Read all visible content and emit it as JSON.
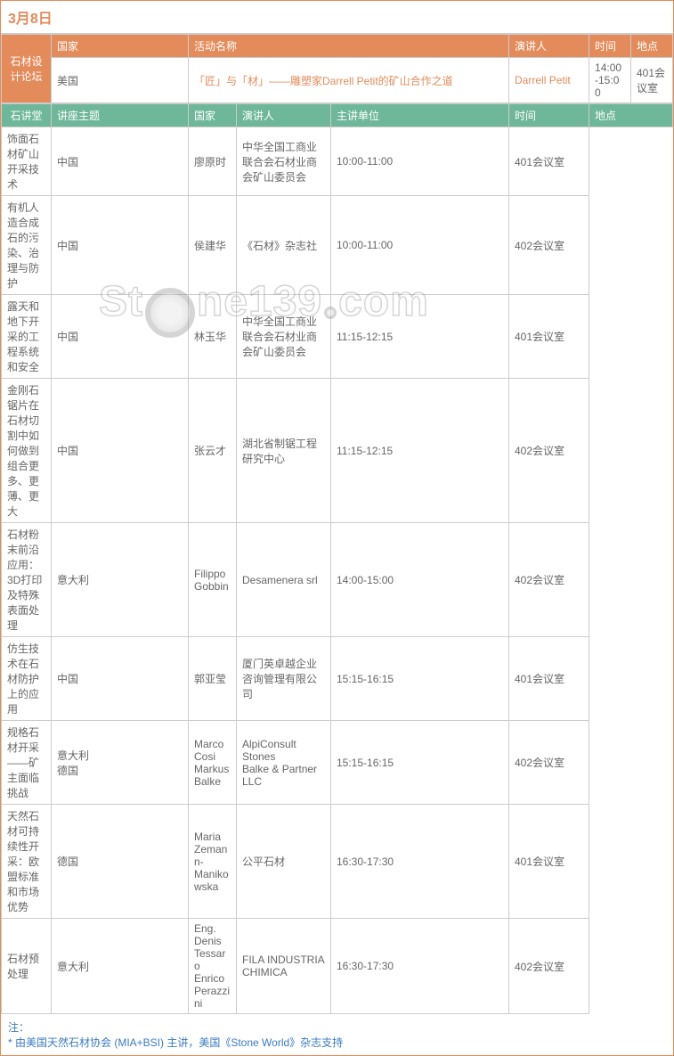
{
  "date": "3月8日",
  "forum": {
    "side_label": "石材设计论坛",
    "headers": {
      "country": "国家",
      "activity": "活动名称",
      "speaker": "演讲人",
      "time": "时间",
      "venue": "地点"
    },
    "row": {
      "country": "美国",
      "activity": "「匠」与「材」——雕塑家Darrell Petit的矿山合作之道",
      "speaker": "Darrell Petit",
      "time": "14:00-15:00",
      "venue": "401会议室"
    }
  },
  "lectures": {
    "side_label": "石讲堂",
    "headers": {
      "topic": "讲座主题",
      "country": "国家",
      "speaker": "演讲人",
      "org": "主讲单位",
      "time": "时间",
      "venue": "地点"
    },
    "rows": [
      {
        "topic": "饰面石材矿山开采技术",
        "country": "中国",
        "speaker": "廖原时",
        "org": "中华全国工商业联合会石材业商会矿山委员会",
        "time": "10:00-11:00",
        "venue": "401会议室"
      },
      {
        "topic": "有机人造合成石的污染、治理与防护",
        "country": "中国",
        "speaker": "侯建华",
        "org": "《石材》杂志社",
        "time": "10:00-11:00",
        "venue": "402会议室"
      },
      {
        "topic": "露天和地下开采的工程系统和安全",
        "country": "中国",
        "speaker": "林玉华",
        "org": "中华全国工商业联合会石材业商会矿山委员会",
        "time": "11:15-12:15",
        "venue": "401会议室"
      },
      {
        "topic": "金刚石锯片在石材切割中如何做到组合更多、更薄、更大",
        "country": "中国",
        "speaker": "张云才",
        "org": "湖北省制锯工程研究中心",
        "time": "11:15-12:15",
        "venue": "402会议室"
      },
      {
        "topic": "石材粉末前沿应用：3D打印及特殊表面处理",
        "country": "意大利",
        "speaker": "Filippo Gobbin",
        "org": "Desamenera srl",
        "time": "14:00-15:00",
        "venue": "402会议室"
      },
      {
        "topic": "仿生技术在石材防护上的应用",
        "country": "中国",
        "speaker": "郭亚莹",
        "org": "厦门英卓越企业咨询管理有限公司",
        "time": "15:15-16:15",
        "venue": "401会议室"
      },
      {
        "topic": "规格石材开采——矿主面临挑战",
        "country": "意大利\n德国",
        "speaker": "Marco Cosi\nMarkus Balke",
        "org": "AlpiConsult Stones\nBalke & Partner LLC",
        "time": "15:15-16:15",
        "venue": "402会议室"
      },
      {
        "topic": "天然石材可持续性开采：欧盟标准和市场优势",
        "country": "德国",
        "speaker": "Maria Zemann-Manikowska",
        "org": "公平石材",
        "time": "16:30-17:30",
        "venue": "401会议室"
      },
      {
        "topic": "石材预处理",
        "country": "意大利",
        "speaker": "Eng. Denis Tessaro\nEnrico Perazzini",
        "org": "FILA INDUSTRIA CHIMICA",
        "time": "16:30-17:30",
        "venue": "402会议室"
      }
    ]
  },
  "note": {
    "title": "注：",
    "text": "* 由美国天然石材协会 (MIA+BSI) 主讲，美国《Stone World》杂志支持"
  },
  "colors": {
    "orange": "#e38b5a",
    "green": "#6fb79a",
    "link": "#3b7bbf",
    "border": "#cccccc",
    "text": "#666666"
  },
  "watermark": "Stone139.com"
}
